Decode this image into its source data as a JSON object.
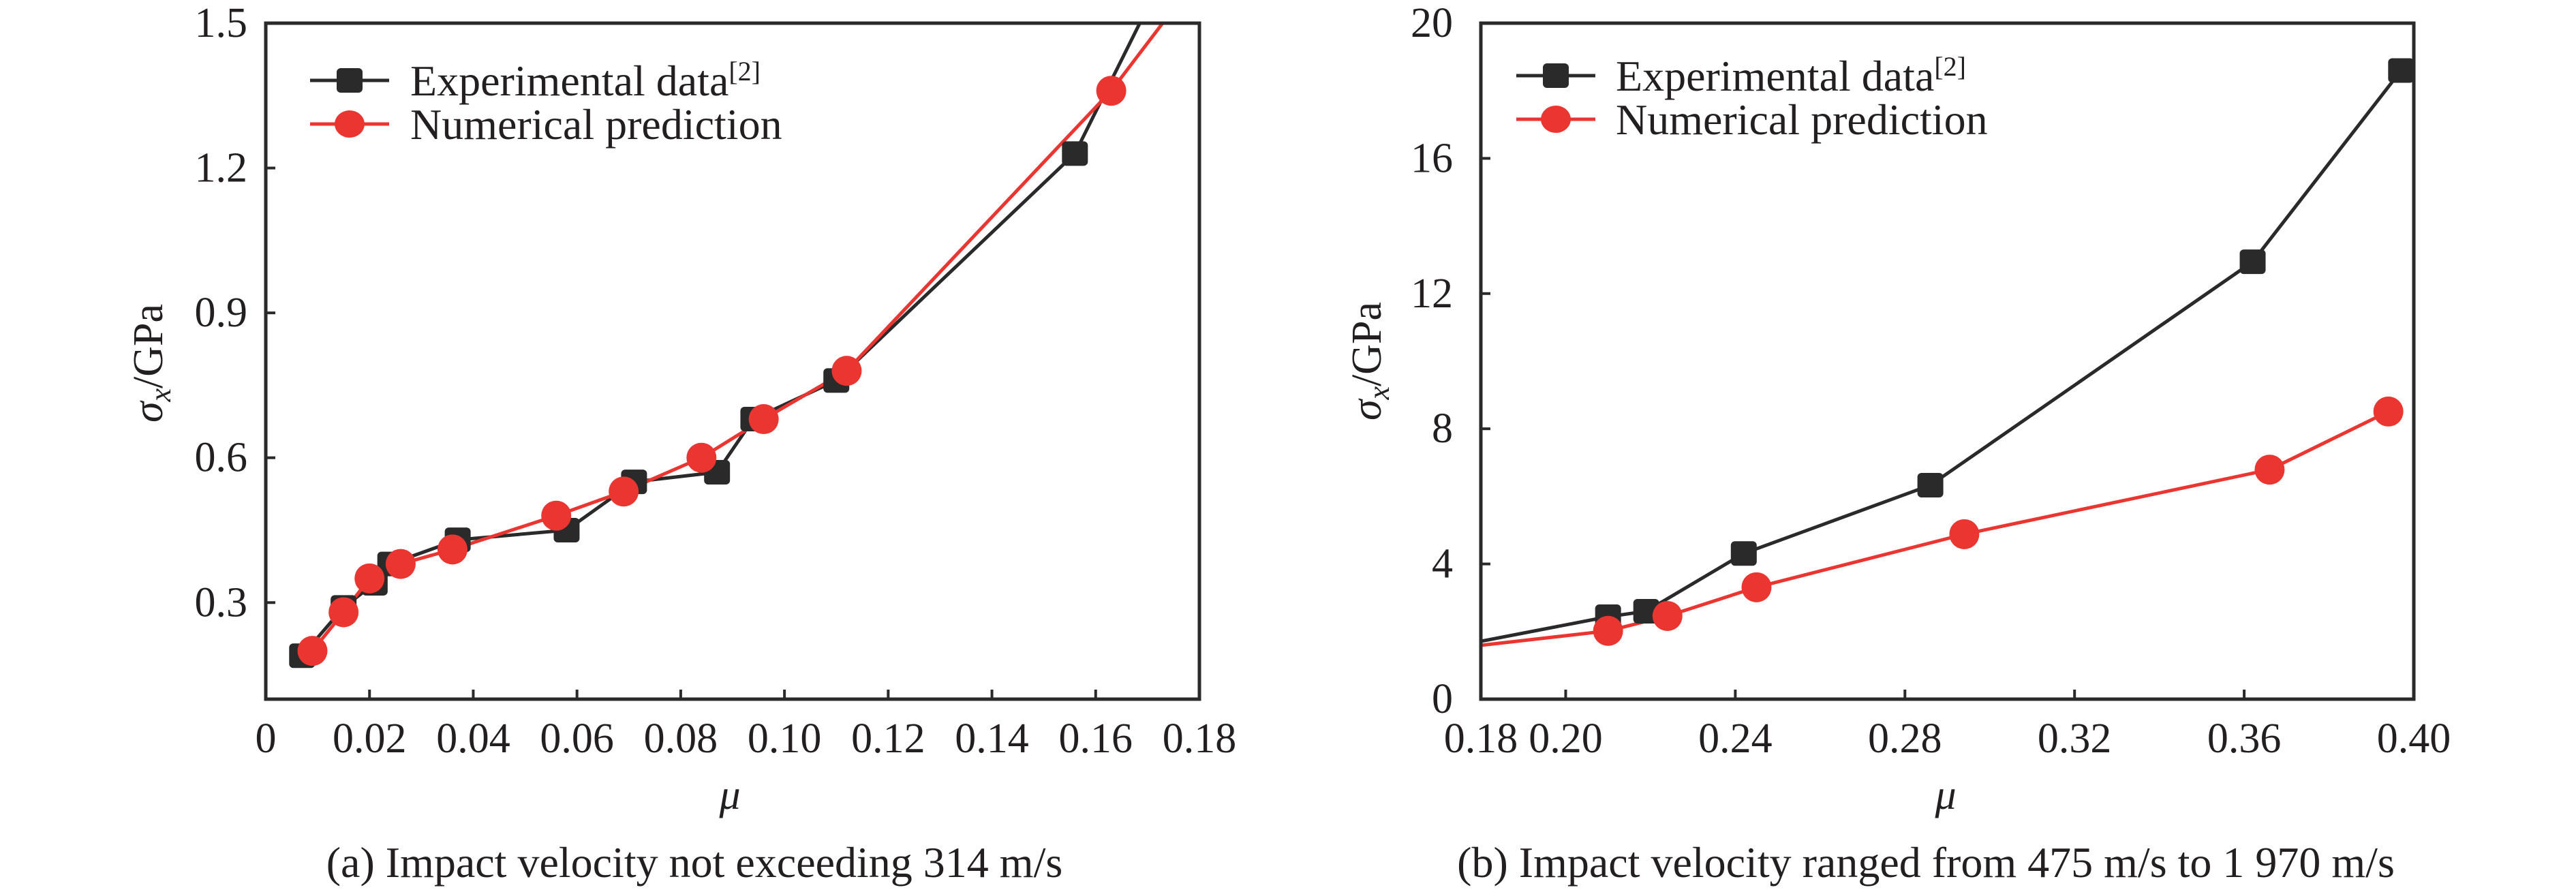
{
  "figure": {
    "captions": [
      "(a) Impact velocity not exceeding 314 m/s",
      "(b) Impact velocity ranged from 475 m/s to 1 970 m/s"
    ],
    "colors": {
      "experimental": "#2b2a2b",
      "numerical": "#ea3531",
      "axis": "#2b2a2b",
      "text": "#231f20"
    }
  },
  "chart_data": [
    {
      "type": "line",
      "panel": "a",
      "title": "(a) Impact velocity not exceeding 314 m/s",
      "xlabel": "μ",
      "ylabel": "σx/GPa",
      "ylabel_main": "σ",
      "ylabel_sub": "x",
      "ylabel_unit": "/GPa",
      "xlim": [
        0,
        0.18
      ],
      "ylim": [
        0.1,
        1.5
      ],
      "xticks": [
        0,
        0.02,
        0.04,
        0.06,
        0.08,
        0.1,
        0.12,
        0.14,
        0.16,
        0.18
      ],
      "xtick_labels": [
        "0",
        "0.02",
        "0.04",
        "0.06",
        "0.08",
        "0.10",
        "0.12",
        "0.14",
        "0.16",
        "0.18"
      ],
      "yticks": [
        0.3,
        0.6,
        0.9,
        1.2,
        1.5
      ],
      "ytick_labels": [
        "0.3",
        "0.6",
        "0.9",
        "1.2",
        "1.5"
      ],
      "grid": false,
      "legend_position": "top-left",
      "series": [
        {
          "name": "Experimental data",
          "name_superscript": "[2]",
          "marker": "square",
          "x": [
            0.007,
            0.015,
            0.021,
            0.024,
            0.037,
            0.058,
            0.071,
            0.087,
            0.094,
            0.11,
            0.156,
            0.175
          ],
          "y": [
            0.19,
            0.29,
            0.34,
            0.38,
            0.43,
            0.45,
            0.55,
            0.57,
            0.68,
            0.76,
            1.23,
            1.64
          ],
          "marker_visible": [
            true,
            true,
            true,
            true,
            true,
            true,
            true,
            true,
            true,
            true,
            true,
            false
          ]
        },
        {
          "name": "Numerical prediction",
          "name_superscript": "",
          "marker": "circle",
          "x": [
            0.009,
            0.015,
            0.02,
            0.026,
            0.036,
            0.056,
            0.069,
            0.084,
            0.096,
            0.112,
            0.163,
            0.18
          ],
          "y": [
            0.2,
            0.28,
            0.35,
            0.38,
            0.41,
            0.48,
            0.53,
            0.6,
            0.68,
            0.78,
            1.36,
            1.6
          ],
          "marker_visible": [
            true,
            true,
            true,
            true,
            true,
            true,
            true,
            true,
            true,
            true,
            true,
            false
          ]
        }
      ]
    },
    {
      "type": "line",
      "panel": "b",
      "title": "(b) Impact velocity ranged from 475 m/s to 1 970 m/s",
      "xlabel": "μ",
      "ylabel": "σx/GPa",
      "ylabel_main": "σ",
      "ylabel_sub": "x",
      "ylabel_unit": "/GPa",
      "xlim": [
        0.18,
        0.4
      ],
      "ylim": [
        0,
        20
      ],
      "xticks": [
        0.18,
        0.2,
        0.24,
        0.28,
        0.32,
        0.36,
        0.4
      ],
      "xtick_labels": [
        "0.18",
        "0.20",
        "0.24",
        "0.28",
        "0.32",
        "0.36",
        "0.40"
      ],
      "yticks": [
        0,
        4,
        8,
        12,
        16,
        20
      ],
      "ytick_labels": [
        "0",
        "4",
        "8",
        "12",
        "16",
        "20"
      ],
      "grid": false,
      "legend_position": "top-left",
      "series": [
        {
          "name": "Experimental data",
          "name_superscript": "[2]",
          "marker": "square",
          "x": [
            0.17,
            0.21,
            0.219,
            0.242,
            0.286,
            0.362,
            0.397
          ],
          "y": [
            1.47,
            2.44,
            2.6,
            4.31,
            6.33,
            12.94,
            18.6
          ],
          "marker_visible": [
            false,
            true,
            true,
            true,
            true,
            true,
            true
          ]
        },
        {
          "name": "Numerical prediction",
          "name_superscript": "",
          "marker": "circle",
          "x": [
            0.17,
            0.21,
            0.224,
            0.245,
            0.294,
            0.366,
            0.394
          ],
          "y": [
            1.45,
            2.02,
            2.46,
            3.31,
            4.88,
            6.79,
            8.51
          ],
          "marker_visible": [
            false,
            true,
            true,
            true,
            true,
            true,
            true
          ]
        }
      ]
    }
  ]
}
